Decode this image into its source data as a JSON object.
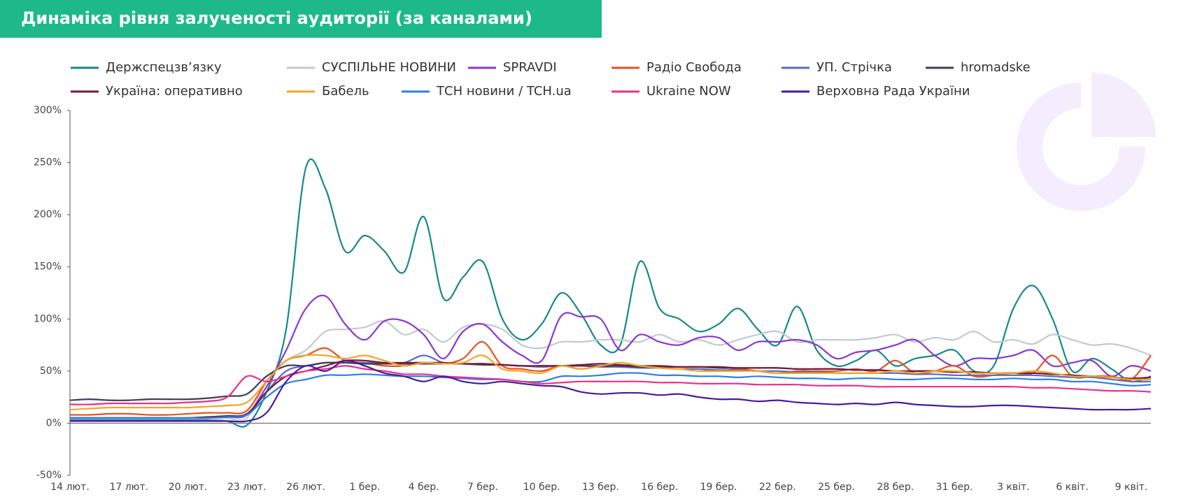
{
  "chart_data": {
    "type": "line",
    "title": "Динаміка рівня залученості аудиторії (за каналами)",
    "categories": [
      "14 лют.",
      null,
      null,
      "17 лют.",
      null,
      null,
      "20 лют.",
      null,
      null,
      "23 лют.",
      null,
      null,
      "26 лют.",
      null,
      null,
      "1 бер.",
      null,
      null,
      "4 бер.",
      null,
      null,
      "7 бер.",
      null,
      null,
      "10 бер.",
      null,
      null,
      "13 бер.",
      null,
      null,
      "16 бер.",
      null,
      null,
      "19 бер.",
      null,
      null,
      "22 бер.",
      null,
      null,
      "25 бер.",
      null,
      null,
      "28 бер.",
      null,
      null,
      "31 бер.",
      null,
      null,
      "3 квіт.",
      null,
      null,
      "6 квіт.",
      null,
      null,
      "9 квіт.",
      null
    ],
    "ylim": [
      -50,
      300
    ],
    "yticks": [
      {
        "value": -50,
        "label": "-50%"
      },
      {
        "value": 0,
        "label": "0%"
      },
      {
        "value": 50,
        "label": "50%"
      },
      {
        "value": 100,
        "label": "100%"
      },
      {
        "value": 150,
        "label": "150%"
      },
      {
        "value": 200,
        "label": "200%"
      },
      {
        "value": 250,
        "label": "250%"
      },
      {
        "value": 300,
        "label": "300%"
      }
    ],
    "grid": false,
    "series": [
      {
        "name": "Держспецзв’язку",
        "color": "#14898a",
        "values": [
          3,
          3,
          3,
          3,
          3,
          3,
          3,
          3,
          2,
          -2,
          30,
          90,
          245,
          225,
          165,
          180,
          165,
          145,
          198,
          120,
          140,
          155,
          100,
          80,
          95,
          125,
          105,
          75,
          75,
          155,
          110,
          100,
          88,
          95,
          110,
          90,
          75,
          112,
          70,
          55,
          60,
          70,
          55,
          62,
          65,
          70,
          50,
          55,
          110,
          132,
          100,
          50,
          62,
          52,
          40,
          45
        ]
      },
      {
        "name": "СУСПІЛЬНЕ НОВИНИ",
        "color": "#c3c8d2",
        "values": [
          5,
          5,
          5,
          5,
          5,
          5,
          5,
          5,
          5,
          5,
          40,
          60,
          70,
          88,
          90,
          92,
          98,
          85,
          90,
          78,
          92,
          95,
          90,
          75,
          72,
          78,
          78,
          80,
          80,
          78,
          85,
          78,
          80,
          75,
          80,
          85,
          88,
          78,
          80,
          80,
          80,
          82,
          85,
          78,
          82,
          80,
          88,
          78,
          80,
          76,
          85,
          80,
          75,
          76,
          72,
          65
        ]
      },
      {
        "name": "SPRAVDI",
        "color": "#8b36d1",
        "values": [
          5,
          5,
          5,
          5,
          5,
          5,
          5,
          5,
          6,
          8,
          35,
          70,
          110,
          122,
          95,
          80,
          98,
          98,
          85,
          62,
          88,
          95,
          78,
          65,
          60,
          103,
          102,
          100,
          70,
          85,
          78,
          75,
          82,
          82,
          70,
          78,
          78,
          80,
          75,
          62,
          68,
          70,
          75,
          80,
          65,
          55,
          62,
          62,
          65,
          70,
          55,
          58,
          60,
          45,
          55,
          50
        ]
      },
      {
        "name": "Радіо Свобода",
        "color": "#e8521f",
        "values": [
          8,
          8,
          9,
          9,
          8,
          8,
          9,
          10,
          10,
          12,
          40,
          60,
          65,
          72,
          60,
          58,
          55,
          55,
          58,
          57,
          62,
          78,
          55,
          52,
          50,
          55,
          52,
          55,
          55,
          55,
          53,
          52,
          52,
          50,
          52,
          50,
          48,
          50,
          50,
          50,
          52,
          50,
          60,
          48,
          50,
          55,
          45,
          46,
          48,
          48,
          65,
          45,
          45,
          45,
          42,
          65
        ]
      },
      {
        "name": "УП. Стрічка",
        "color": "#5a6bc2",
        "values": [
          5,
          5,
          5,
          5,
          5,
          5,
          5,
          5,
          6,
          8,
          30,
          50,
          55,
          58,
          58,
          58,
          58,
          58,
          65,
          58,
          57,
          57,
          56,
          55,
          54,
          55,
          55,
          54,
          54,
          53,
          53,
          52,
          52,
          51,
          51,
          50,
          50,
          49,
          49,
          48,
          48,
          48,
          48,
          47,
          47,
          46,
          46,
          46,
          46,
          46,
          45,
          44,
          44,
          42,
          40,
          40
        ]
      },
      {
        "name": "hromadske",
        "color": "#3e3e5a",
        "values": [
          22,
          23,
          22,
          22,
          23,
          23,
          23,
          24,
          26,
          28,
          45,
          55,
          55,
          58,
          58,
          57,
          57,
          57,
          57,
          57,
          57,
          56,
          56,
          55,
          55,
          55,
          55,
          55,
          55,
          54,
          54,
          54,
          54,
          53,
          53,
          53,
          53,
          52,
          52,
          52,
          51,
          51,
          50,
          50,
          50,
          49,
          49,
          48,
          48,
          48,
          47,
          46,
          45,
          44,
          42,
          42
        ]
      },
      {
        "name": "Україна: оперативно",
        "color": "#7b1838",
        "values": [
          5,
          5,
          5,
          5,
          5,
          5,
          5,
          6,
          7,
          9,
          30,
          45,
          50,
          55,
          60,
          60,
          58,
          58,
          58,
          58,
          57,
          57,
          56,
          55,
          55,
          55,
          56,
          57,
          56,
          55,
          55,
          54,
          54,
          54,
          53,
          53,
          53,
          52,
          52,
          52,
          51,
          51,
          50,
          50,
          50,
          49,
          49,
          48,
          48,
          48,
          47,
          46,
          45,
          44,
          43,
          44
        ]
      },
      {
        "name": "Бабель",
        "color": "#f5a623",
        "values": [
          13,
          14,
          15,
          15,
          15,
          15,
          15,
          16,
          17,
          20,
          40,
          60,
          65,
          65,
          62,
          65,
          60,
          55,
          58,
          57,
          58,
          65,
          52,
          50,
          48,
          55,
          52,
          55,
          58,
          55,
          53,
          52,
          50,
          50,
          50,
          50,
          48,
          48,
          48,
          48,
          48,
          48,
          50,
          48,
          50,
          50,
          48,
          48,
          48,
          50,
          48,
          45,
          45,
          44,
          42,
          42
        ]
      },
      {
        "name": "ТСН новини / TCH.ua",
        "color": "#2a7de6",
        "values": [
          5,
          5,
          5,
          5,
          5,
          5,
          5,
          5,
          6,
          8,
          25,
          38,
          42,
          46,
          46,
          47,
          46,
          45,
          45,
          44,
          43,
          42,
          42,
          40,
          40,
          45,
          45,
          46,
          48,
          48,
          46,
          46,
          45,
          45,
          44,
          45,
          44,
          43,
          43,
          42,
          43,
          43,
          42,
          42,
          43,
          43,
          42,
          42,
          43,
          42,
          42,
          40,
          40,
          38,
          36,
          37
        ]
      },
      {
        "name": "Ukraine NOW",
        "color": "#ec2f8b",
        "values": [
          18,
          18,
          19,
          19,
          19,
          19,
          20,
          21,
          25,
          45,
          40,
          45,
          50,
          52,
          55,
          52,
          50,
          47,
          47,
          45,
          44,
          43,
          42,
          40,
          38,
          39,
          40,
          40,
          40,
          40,
          39,
          39,
          38,
          38,
          38,
          37,
          37,
          37,
          36,
          36,
          36,
          35,
          35,
          35,
          35,
          35,
          35,
          35,
          35,
          34,
          34,
          33,
          32,
          31,
          31,
          30
        ]
      },
      {
        "name": "Верховна Рада України",
        "color": "#4a1a9c",
        "values": [
          2,
          2,
          2,
          2,
          2,
          2,
          2,
          2,
          2,
          2,
          10,
          40,
          55,
          50,
          60,
          55,
          48,
          45,
          40,
          45,
          40,
          38,
          40,
          38,
          36,
          35,
          30,
          28,
          29,
          29,
          27,
          28,
          25,
          23,
          23,
          21,
          22,
          20,
          19,
          18,
          19,
          18,
          20,
          18,
          17,
          16,
          16,
          17,
          17,
          16,
          15,
          14,
          13,
          13,
          13,
          14
        ]
      }
    ]
  }
}
